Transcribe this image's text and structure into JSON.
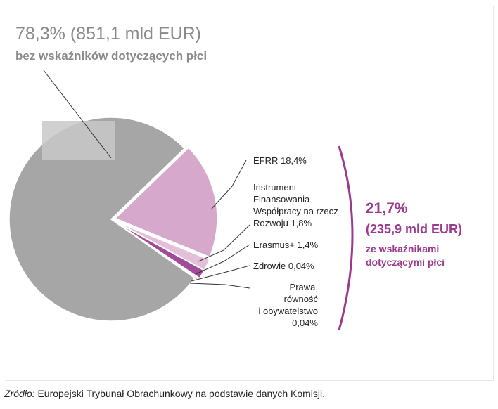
{
  "chart_data": {
    "type": "pie",
    "headline": {
      "value": "78,3% (851,1 mld EUR)",
      "label": "bez wskaźników dotyczących płci"
    },
    "slices": [
      {
        "label": "bez wskaźników dotyczących płci",
        "value": 78.3,
        "color": "#a6a6a6"
      },
      {
        "label": "EFRR 18,4%",
        "value": 18.4,
        "color": "#d6a9cc"
      },
      {
        "label": "Instrument Finansowania Współpracy na rzecz Rozwoju 1,8%",
        "value": 1.8,
        "color": "#e3bfd9"
      },
      {
        "label": "Erasmus+ 1,4%",
        "value": 1.4,
        "color": "#a04c98"
      },
      {
        "label": "Zdrowie 0,04%",
        "value": 0.04,
        "color": "#8e3486"
      },
      {
        "label": "Prawa, równość i obywatelstwo 0,04%",
        "value": 0.04,
        "color": "#7a2a73"
      }
    ],
    "labels": {
      "efrr": "EFRR 18,4%",
      "instrument": [
        "Instrument",
        "Finansowania",
        "Współpracy na rzecz",
        "Rozwoju 1,8%"
      ],
      "erasmus": "Erasmus+ 1,4%",
      "zdrowie": "Zdrowie 0,04%",
      "prawa": [
        "Prawa, równość",
        "i obywatelstwo",
        "0,04%"
      ]
    },
    "bracket": {
      "pct": "21,7%",
      "amount": "(235,9 mld EUR)",
      "desc": [
        "ze wskaźnikami",
        "dotyczącymi płci"
      ]
    },
    "colors": {
      "accent": "#9b3a8f",
      "gray": "#a6a6a6",
      "title_gray": "#8a8a8a"
    }
  },
  "source": {
    "prefix": "Źródło:",
    "text": " Europejski Trybunał Obrachunkowy na podstawie danych Komisji."
  }
}
